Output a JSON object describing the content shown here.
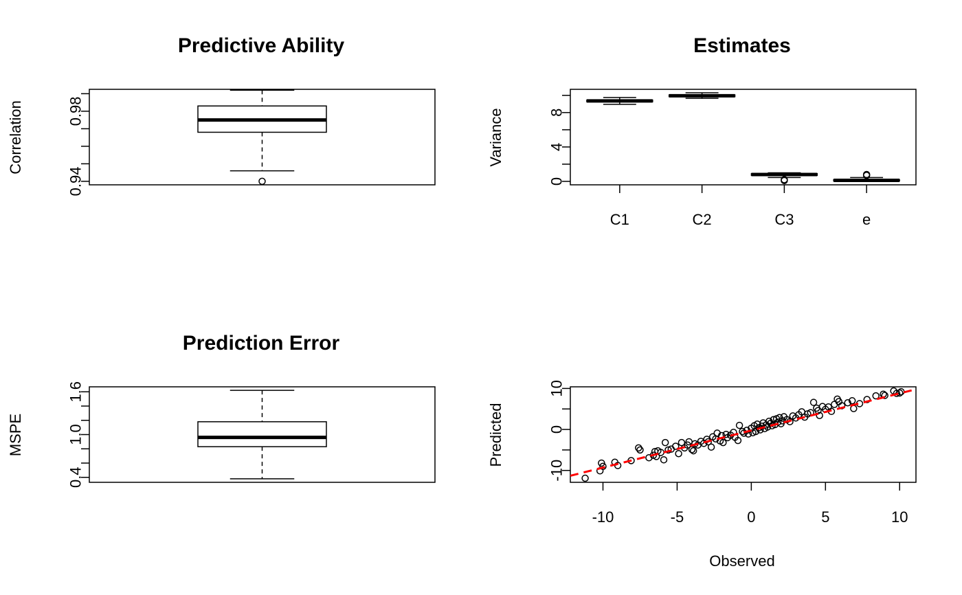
{
  "chart_data": [
    {
      "type": "box",
      "title": "Predictive Ability",
      "xlabel": "",
      "ylabel": "Correlation",
      "ylim": [
        0.938,
        0.9925
      ],
      "yticks": [
        0.94,
        0.95,
        0.96,
        0.97,
        0.98,
        0.99
      ],
      "ytick_labels": [
        "0.94",
        "",
        "",
        "",
        "0.98",
        ""
      ],
      "boxes": [
        {
          "category": "",
          "min": 0.946,
          "q1": 0.968,
          "median": 0.975,
          "q3": 0.983,
          "max": 0.992,
          "outliers": [
            0.94
          ]
        }
      ]
    },
    {
      "type": "box",
      "title": "Estimates",
      "xlabel": "",
      "ylabel": "Variance",
      "ylim": [
        -0.4,
        10.7
      ],
      "yticks": [
        0,
        2,
        4,
        6,
        8,
        10
      ],
      "ytick_labels": [
        "0",
        "",
        "4",
        "",
        "8",
        ""
      ],
      "categories": [
        "C1",
        "C2",
        "C3",
        "e"
      ],
      "boxes": [
        {
          "category": "C1",
          "min": 8.95,
          "q1": 9.25,
          "median": 9.35,
          "q3": 9.45,
          "max": 9.75,
          "outliers": []
        },
        {
          "category": "C2",
          "min": 9.65,
          "q1": 9.85,
          "median": 9.95,
          "q3": 10.05,
          "max": 10.3,
          "outliers": []
        },
        {
          "category": "C3",
          "min": 0.45,
          "q1": 0.7,
          "median": 0.8,
          "q3": 0.9,
          "max": 1.0,
          "outliers": [
            0.1,
            0.2
          ]
        },
        {
          "category": "e",
          "min": 0.0,
          "q1": 0.05,
          "median": 0.12,
          "q3": 0.2,
          "max": 0.45,
          "outliers": [
            0.7,
            0.8
          ]
        }
      ]
    },
    {
      "type": "box",
      "title": "Prediction Error",
      "xlabel": "",
      "ylabel": "MSPE",
      "ylim": [
        0.33,
        1.67
      ],
      "yticks": [
        0.4,
        0.6,
        0.8,
        1.0,
        1.2,
        1.4,
        1.6
      ],
      "ytick_labels": [
        "0.4",
        "",
        "",
        "1.0",
        "",
        "",
        "1.6"
      ],
      "boxes": [
        {
          "category": "",
          "min": 0.38,
          "q1": 0.83,
          "median": 0.96,
          "q3": 1.18,
          "max": 1.62,
          "outliers": []
        }
      ]
    },
    {
      "type": "scatter",
      "title": "",
      "xlabel": "Observed",
      "ylabel": "Predicted",
      "xlim": [
        -12.2,
        11.1
      ],
      "ylim": [
        -12.9,
        10.4
      ],
      "xticks": [
        -10,
        -5,
        0,
        5,
        10
      ],
      "xtick_labels": [
        "-10",
        "-5",
        "0",
        "5",
        "10"
      ],
      "yticks": [
        -10,
        -5,
        0,
        5,
        10
      ],
      "ytick_labels": [
        "-10",
        "",
        "0",
        "",
        "10"
      ],
      "fit_line": {
        "style": "dashed",
        "color": "#ff0000",
        "x": [
          -12.2,
          11.1
        ],
        "y": [
          -11.3,
          9.8
        ]
      },
      "points": [
        [
          -11.2,
          -11.9
        ],
        [
          -10.2,
          -10.1
        ],
        [
          -10.0,
          -9.0
        ],
        [
          -10.1,
          -8.2
        ],
        [
          -9.2,
          -8.0
        ],
        [
          -9.0,
          -8.8
        ],
        [
          -8.1,
          -7.6
        ],
        [
          -7.6,
          -4.5
        ],
        [
          -7.5,
          -5.0
        ],
        [
          -6.9,
          -6.9
        ],
        [
          -6.6,
          -6.3
        ],
        [
          -6.5,
          -5.4
        ],
        [
          -6.4,
          -6.6
        ],
        [
          -6.3,
          -5.2
        ],
        [
          -6.1,
          -5.6
        ],
        [
          -5.9,
          -7.4
        ],
        [
          -5.8,
          -3.2
        ],
        [
          -5.6,
          -5.0
        ],
        [
          -5.4,
          -4.8
        ],
        [
          -5.1,
          -4.1
        ],
        [
          -4.9,
          -5.9
        ],
        [
          -4.7,
          -3.2
        ],
        [
          -4.5,
          -4.5
        ],
        [
          -4.3,
          -3.8
        ],
        [
          -4.2,
          -3.0
        ],
        [
          -4.0,
          -4.9
        ],
        [
          -3.9,
          -5.2
        ],
        [
          -3.8,
          -3.5
        ],
        [
          -3.6,
          -3.8
        ],
        [
          -3.4,
          -2.9
        ],
        [
          -3.2,
          -3.4
        ],
        [
          -3.0,
          -2.4
        ],
        [
          -2.9,
          -3.0
        ],
        [
          -2.7,
          -4.3
        ],
        [
          -2.6,
          -1.8
        ],
        [
          -2.4,
          -2.3
        ],
        [
          -2.3,
          -0.9
        ],
        [
          -2.1,
          -2.8
        ],
        [
          -2.0,
          -1.5
        ],
        [
          -1.9,
          -3.2
        ],
        [
          -1.7,
          -1.2
        ],
        [
          -1.6,
          -2.0
        ],
        [
          -1.4,
          -1.4
        ],
        [
          -1.2,
          -0.7
        ],
        [
          -1.1,
          -1.9
        ],
        [
          -0.9,
          -2.7
        ],
        [
          -0.8,
          1.0
        ],
        [
          -0.6,
          -0.5
        ],
        [
          -0.5,
          -0.9
        ],
        [
          -0.3,
          -0.2
        ],
        [
          -0.2,
          -1.1
        ],
        [
          0.0,
          0.3
        ],
        [
          0.1,
          -0.8
        ],
        [
          0.2,
          0.9
        ],
        [
          0.3,
          -0.5
        ],
        [
          0.4,
          1.3
        ],
        [
          0.5,
          0.4
        ],
        [
          0.6,
          -0.1
        ],
        [
          0.7,
          0.8
        ],
        [
          0.8,
          1.6
        ],
        [
          0.9,
          0.2
        ],
        [
          1.0,
          1.1
        ],
        [
          1.1,
          0.6
        ],
        [
          1.2,
          2.0
        ],
        [
          1.3,
          1.5
        ],
        [
          1.4,
          0.9
        ],
        [
          1.5,
          2.4
        ],
        [
          1.6,
          1.2
        ],
        [
          1.7,
          2.6
        ],
        [
          1.8,
          1.8
        ],
        [
          1.9,
          2.9
        ],
        [
          2.0,
          1.4
        ],
        [
          2.1,
          2.1
        ],
        [
          2.2,
          3.1
        ],
        [
          2.4,
          2.4
        ],
        [
          2.6,
          1.9
        ],
        [
          2.8,
          3.3
        ],
        [
          3.0,
          2.8
        ],
        [
          3.2,
          3.6
        ],
        [
          3.4,
          4.3
        ],
        [
          3.6,
          3.0
        ],
        [
          3.8,
          3.8
        ],
        [
          4.0,
          4.1
        ],
        [
          4.2,
          6.6
        ],
        [
          4.4,
          5.2
        ],
        [
          4.5,
          4.6
        ],
        [
          4.6,
          3.4
        ],
        [
          4.8,
          5.6
        ],
        [
          5.0,
          4.9
        ],
        [
          5.2,
          5.5
        ],
        [
          5.4,
          4.4
        ],
        [
          5.6,
          6.1
        ],
        [
          5.8,
          7.4
        ],
        [
          5.9,
          6.8
        ],
        [
          6.1,
          5.8
        ],
        [
          6.5,
          6.5
        ],
        [
          6.8,
          7.0
        ],
        [
          6.9,
          5.1
        ],
        [
          7.3,
          6.3
        ],
        [
          7.8,
          7.3
        ],
        [
          8.4,
          8.2
        ],
        [
          8.9,
          8.6
        ],
        [
          9.0,
          8.3
        ],
        [
          9.6,
          9.4
        ],
        [
          9.8,
          8.8
        ],
        [
          10.0,
          8.9
        ],
        [
          10.1,
          9.2
        ]
      ]
    }
  ]
}
